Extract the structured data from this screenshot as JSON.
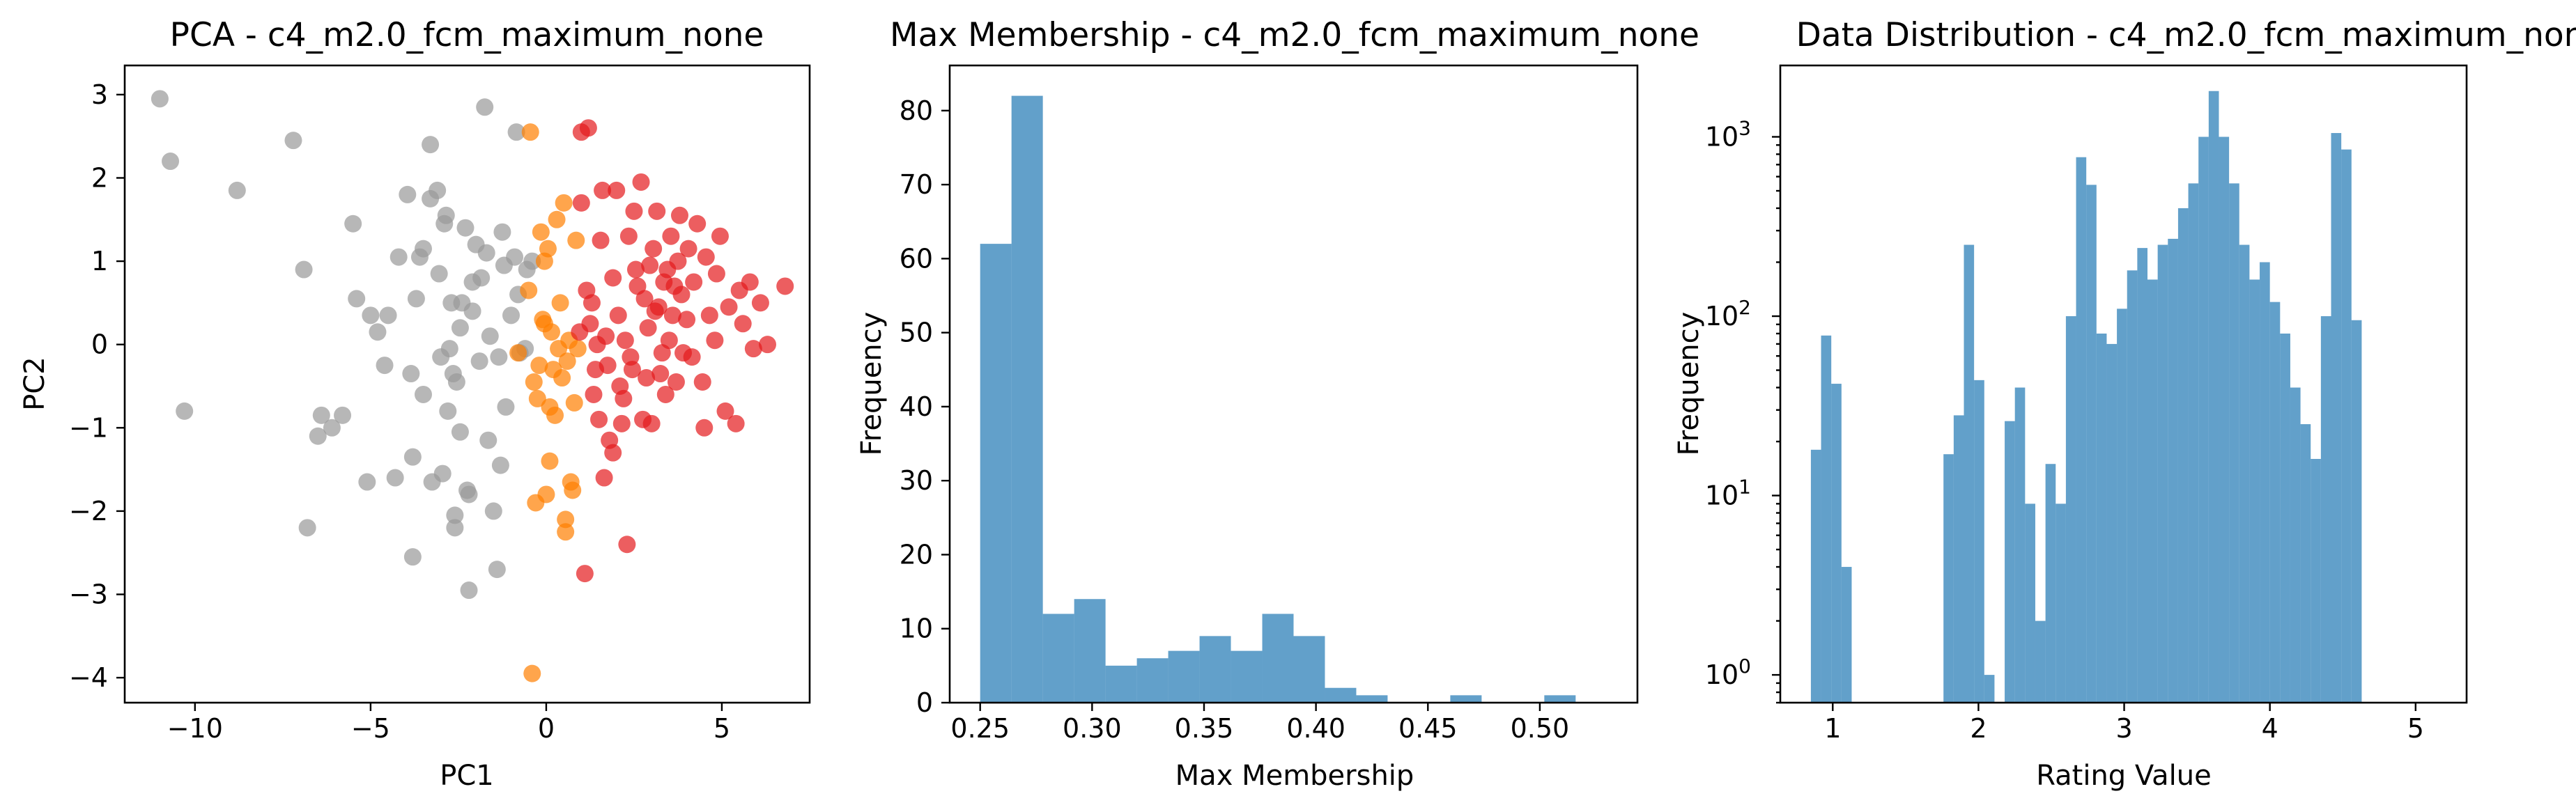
{
  "chart_data": [
    {
      "type": "scatter",
      "title": "PCA - c4_m2.0_fcm_maximum_none",
      "xlabel": "PC1",
      "ylabel": "PC2",
      "xlim": [
        -12,
        7.5
      ],
      "ylim": [
        -4.3,
        3.35
      ],
      "xticks": [
        -10,
        -5,
        0,
        5
      ],
      "yticks": [
        -4,
        -3,
        -2,
        -1,
        0,
        1,
        2,
        3
      ],
      "grid": false,
      "marker_alpha": 0.7,
      "series": [
        {
          "color": "#999999",
          "points": [
            [
              -11,
              2.95
            ],
            [
              -10.7,
              2.2
            ],
            [
              -10.3,
              -0.8
            ],
            [
              -8.8,
              1.85
            ],
            [
              -7.2,
              2.45
            ],
            [
              -6.9,
              0.9
            ],
            [
              -6.8,
              -2.2
            ],
            [
              -6.5,
              -1.1
            ],
            [
              -6.4,
              -0.85
            ],
            [
              -6.1,
              -1.0
            ],
            [
              -5.8,
              -0.85
            ],
            [
              -5.5,
              1.45
            ],
            [
              -5.4,
              0.55
            ],
            [
              -5.1,
              -1.65
            ],
            [
              -5.0,
              0.35
            ],
            [
              -4.8,
              0.15
            ],
            [
              -4.6,
              -0.25
            ],
            [
              -4.5,
              0.35
            ],
            [
              -4.3,
              -1.6
            ],
            [
              -4.2,
              1.05
            ],
            [
              -3.95,
              1.8
            ],
            [
              -3.85,
              -0.35
            ],
            [
              -3.8,
              -1.35
            ],
            [
              -3.8,
              -2.55
            ],
            [
              -3.7,
              0.55
            ],
            [
              -3.6,
              1.05
            ],
            [
              -3.5,
              1.15
            ],
            [
              -3.5,
              -0.6
            ],
            [
              -3.3,
              1.75
            ],
            [
              -3.3,
              2.4
            ],
            [
              -3.25,
              -1.65
            ],
            [
              -3.1,
              1.85
            ],
            [
              -3.05,
              0.85
            ],
            [
              -3.0,
              -0.15
            ],
            [
              -2.95,
              -1.55
            ],
            [
              -2.9,
              1.45
            ],
            [
              -2.85,
              1.55
            ],
            [
              -2.8,
              -0.8
            ],
            [
              -2.75,
              -0.05
            ],
            [
              -2.7,
              0.5
            ],
            [
              -2.65,
              -0.35
            ],
            [
              -2.6,
              -2.05
            ],
            [
              -2.6,
              -2.2
            ],
            [
              -2.55,
              -0.45
            ],
            [
              -2.45,
              -1.05
            ],
            [
              -2.45,
              0.2
            ],
            [
              -2.4,
              0.5
            ],
            [
              -2.3,
              1.4
            ],
            [
              -2.25,
              -1.75
            ],
            [
              -2.2,
              -1.8
            ],
            [
              -2.2,
              -2.95
            ],
            [
              -2.1,
              0.75
            ],
            [
              -2.1,
              0.4
            ],
            [
              -2.0,
              1.2
            ],
            [
              -1.9,
              -0.2
            ],
            [
              -1.85,
              0.8
            ],
            [
              -1.75,
              2.85
            ],
            [
              -1.7,
              1.1
            ],
            [
              -1.65,
              -1.15
            ],
            [
              -1.6,
              0.1
            ],
            [
              -1.5,
              -2.0
            ],
            [
              -1.4,
              -2.7
            ],
            [
              -1.35,
              -0.15
            ],
            [
              -1.3,
              -1.45
            ],
            [
              -1.25,
              1.35
            ],
            [
              -1.2,
              0.95
            ],
            [
              -1.15,
              -0.75
            ],
            [
              -1.0,
              0.35
            ],
            [
              -0.9,
              1.05
            ],
            [
              -0.85,
              2.55
            ],
            [
              -0.8,
              0.6
            ],
            [
              -0.75,
              -0.1
            ],
            [
              -0.6,
              -0.05
            ],
            [
              -0.55,
              0.9
            ],
            [
              -0.4,
              1.0
            ]
          ]
        },
        {
          "color": "#ff7f00",
          "points": [
            [
              -0.45,
              2.55
            ],
            [
              -0.8,
              -0.1
            ],
            [
              -0.5,
              0.65
            ],
            [
              -0.4,
              -3.95
            ],
            [
              -0.35,
              -0.45
            ],
            [
              -0.3,
              -1.9
            ],
            [
              -0.25,
              -0.65
            ],
            [
              -0.2,
              -0.25
            ],
            [
              -0.15,
              1.35
            ],
            [
              -0.1,
              0.3
            ],
            [
              -0.05,
              0.25
            ],
            [
              -0.05,
              1.0
            ],
            [
              0.0,
              -1.8
            ],
            [
              0.05,
              1.15
            ],
            [
              0.1,
              -0.75
            ],
            [
              0.1,
              -1.4
            ],
            [
              0.15,
              0.15
            ],
            [
              0.2,
              -0.3
            ],
            [
              0.25,
              -0.85
            ],
            [
              0.3,
              1.5
            ],
            [
              0.35,
              -0.05
            ],
            [
              0.4,
              0.5
            ],
            [
              0.45,
              -0.4
            ],
            [
              0.5,
              1.7
            ],
            [
              0.55,
              -2.1
            ],
            [
              0.55,
              -2.25
            ],
            [
              0.6,
              -0.2
            ],
            [
              0.65,
              0.05
            ],
            [
              0.7,
              -1.65
            ],
            [
              0.75,
              -1.75
            ],
            [
              0.8,
              -0.7
            ],
            [
              0.85,
              1.25
            ],
            [
              0.9,
              -0.05
            ]
          ]
        },
        {
          "color": "#e41a1c",
          "points": [
            [
              1.0,
              2.55
            ],
            [
              1.2,
              2.6
            ],
            [
              1.0,
              1.7
            ],
            [
              1.3,
              0.5
            ],
            [
              1.5,
              -0.9
            ],
            [
              1.55,
              1.25
            ],
            [
              1.6,
              1.85
            ],
            [
              1.65,
              -1.6
            ],
            [
              1.7,
              0.1
            ],
            [
              1.8,
              -1.15
            ],
            [
              1.9,
              0.8
            ],
            [
              2.0,
              1.85
            ],
            [
              2.05,
              0.35
            ],
            [
              2.1,
              -0.5
            ],
            [
              2.2,
              -0.65
            ],
            [
              2.3,
              -2.4
            ],
            [
              2.35,
              1.3
            ],
            [
              2.4,
              -0.15
            ],
            [
              2.5,
              1.6
            ],
            [
              2.6,
              0.7
            ],
            [
              2.7,
              1.95
            ],
            [
              2.75,
              -0.9
            ],
            [
              2.85,
              -0.4
            ],
            [
              2.9,
              0.2
            ],
            [
              2.95,
              0.95
            ],
            [
              3.0,
              -0.95
            ],
            [
              3.05,
              1.15
            ],
            [
              3.15,
              1.6
            ],
            [
              3.2,
              0.45
            ],
            [
              3.3,
              -0.1
            ],
            [
              3.35,
              0.75
            ],
            [
              3.4,
              -0.6
            ],
            [
              3.5,
              0.05
            ],
            [
              3.55,
              1.3
            ],
            [
              3.6,
              0.35
            ],
            [
              3.7,
              -0.45
            ],
            [
              3.75,
              1.0
            ],
            [
              3.8,
              1.55
            ],
            [
              3.85,
              0.6
            ],
            [
              3.9,
              -0.1
            ],
            [
              4.0,
              0.3
            ],
            [
              4.05,
              1.15
            ],
            [
              4.2,
              0.75
            ],
            [
              4.3,
              1.45
            ],
            [
              4.45,
              -0.45
            ],
            [
              4.5,
              -1.0
            ],
            [
              4.55,
              1.05
            ],
            [
              4.65,
              0.35
            ],
            [
              4.8,
              0.05
            ],
            [
              4.95,
              1.3
            ],
            [
              5.1,
              -0.8
            ],
            [
              5.2,
              0.45
            ],
            [
              5.4,
              -0.95
            ],
            [
              5.5,
              0.65
            ],
            [
              5.6,
              0.25
            ],
            [
              5.8,
              0.75
            ],
            [
              5.9,
              -0.05
            ],
            [
              6.1,
              0.5
            ],
            [
              6.3,
              0.0
            ],
            [
              6.8,
              0.7
            ],
            [
              1.1,
              -2.75
            ],
            [
              1.25,
              0.25
            ],
            [
              1.45,
              0.0
            ],
            [
              1.75,
              -0.25
            ],
            [
              2.15,
              -0.95
            ],
            [
              2.45,
              -0.3
            ],
            [
              2.55,
              0.9
            ],
            [
              2.8,
              0.55
            ],
            [
              3.25,
              -0.35
            ],
            [
              3.45,
              0.9
            ],
            [
              3.65,
              0.7
            ],
            [
              4.15,
              -0.15
            ],
            [
              1.35,
              -0.6
            ],
            [
              1.9,
              -1.3
            ],
            [
              2.25,
              0.05
            ],
            [
              3.1,
              0.4
            ],
            [
              0.95,
              0.15
            ],
            [
              1.15,
              0.65
            ],
            [
              1.4,
              -0.3
            ],
            [
              4.85,
              0.85
            ]
          ]
        }
      ]
    },
    {
      "type": "bar",
      "title": "Max Membership - c4_m2.0_fcm_maximum_none",
      "xlabel": "Max Membership",
      "ylabel": "Frequency",
      "xlim": [
        0.2364,
        0.5436
      ],
      "ylim": [
        0,
        86.1
      ],
      "xticks": [
        0.25,
        0.3,
        0.35,
        0.4,
        0.45,
        0.5
      ],
      "xtick_labels": [
        "0.25",
        "0.30",
        "0.35",
        "0.40",
        "0.45",
        "0.50"
      ],
      "yticks": [
        0,
        10,
        20,
        30,
        40,
        50,
        60,
        70,
        80
      ],
      "color": "#1f77b4",
      "alpha": 0.7,
      "bin_edges": [
        0.25,
        0.264,
        0.278,
        0.292,
        0.306,
        0.32,
        0.334,
        0.348,
        0.362,
        0.376,
        0.39,
        0.404,
        0.418,
        0.432,
        0.446,
        0.46,
        0.474,
        0.488,
        0.502,
        0.516,
        0.53
      ],
      "values": [
        62,
        82,
        12,
        14,
        5,
        6,
        7,
        9,
        7,
        12,
        9,
        2,
        1,
        0,
        0,
        1,
        0,
        0,
        1,
        0
      ],
      "grid": false
    },
    {
      "type": "bar",
      "title": "Data Distribution - c4_m2.0_fcm_maximum_none",
      "xlabel": "Rating Value",
      "ylabel": "Frequency",
      "yscale": "log",
      "xlim": [
        0.64,
        5.35
      ],
      "ylim": [
        0.7,
        2500
      ],
      "xticks": [
        1,
        2,
        3,
        4,
        5
      ],
      "yticks": [
        1,
        10,
        100,
        1000
      ],
      "color": "#1f77b4",
      "alpha": 0.7,
      "bin_edges": [
        0.85,
        0.92,
        0.99,
        1.06,
        1.13,
        1.2,
        1.27,
        1.34,
        1.41,
        1.48,
        1.55,
        1.62,
        1.69,
        1.76,
        1.83,
        1.9,
        1.97,
        2.04,
        2.11,
        2.18,
        2.25,
        2.32,
        2.39,
        2.46,
        2.53,
        2.6,
        2.67,
        2.74,
        2.81,
        2.88,
        2.95,
        3.02,
        3.09,
        3.16,
        3.23,
        3.3,
        3.37,
        3.44,
        3.51,
        3.58,
        3.65,
        3.72,
        3.79,
        3.86,
        3.93,
        4.0,
        4.07,
        4.14,
        4.21,
        4.28,
        4.35,
        4.42,
        4.49,
        4.56,
        4.63,
        4.7,
        4.77,
        4.84,
        4.91,
        4.98,
        5.05,
        5.12
      ],
      "values": [
        18,
        78,
        42,
        4,
        0,
        0,
        0,
        0,
        0,
        0,
        0,
        0,
        0,
        17,
        28,
        250,
        44,
        1,
        0,
        26,
        40,
        9,
        2,
        15,
        9,
        100,
        770,
        540,
        80,
        70,
        110,
        180,
        240,
        160,
        250,
        270,
        400,
        550,
        1000,
        1800,
        1000,
        550,
        250,
        160,
        200,
        120,
        80,
        40,
        25,
        16,
        100,
        1050,
        850,
        95,
        0,
        0,
        0,
        0,
        0,
        0,
        0
      ],
      "grid": false
    }
  ]
}
